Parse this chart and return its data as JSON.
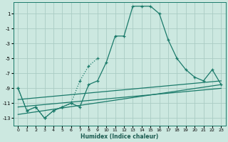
{
  "xlabel": "Humidex (Indice chaleur)",
  "background_color": "#cce8e0",
  "grid_color": "#aaccc4",
  "line_color": "#1a7a6a",
  "xlim": [
    -0.5,
    23.5
  ],
  "ylim": [
    -14,
    2.5
  ],
  "yticks": [
    1,
    -1,
    -3,
    -5,
    -7,
    -9,
    -11,
    -13
  ],
  "xticks": [
    0,
    1,
    2,
    3,
    4,
    5,
    6,
    7,
    8,
    9,
    10,
    11,
    12,
    13,
    14,
    15,
    16,
    17,
    18,
    19,
    20,
    21,
    22,
    23
  ],
  "series_main": {
    "x": [
      0,
      1,
      2,
      3,
      4,
      5,
      6,
      7,
      8,
      9,
      10,
      11,
      12,
      13,
      14,
      15,
      16,
      17,
      18,
      19,
      20,
      21,
      22,
      23
    ],
    "y": [
      -9,
      -12,
      -11.5,
      -13,
      -12,
      -11.5,
      -11,
      -11.5,
      -8.5,
      -8,
      -5.5,
      -2,
      -2,
      2,
      2,
      2,
      1,
      -2.5,
      -5,
      -6.5,
      -7.5,
      -8,
      -6.5,
      -8.5
    ]
  },
  "series_short": {
    "x": [
      0,
      1,
      2,
      3,
      4,
      5,
      6,
      7,
      8,
      9
    ],
    "y": [
      -9,
      -12,
      -11.5,
      -13,
      -12,
      -11.5,
      -11,
      -8,
      -6,
      -5
    ]
  },
  "line1": {
    "x": [
      0,
      23
    ],
    "y": [
      -12.5,
      -8.5
    ]
  },
  "line2": {
    "x": [
      0,
      23
    ],
    "y": [
      -11.5,
      -9.0
    ]
  },
  "line3": {
    "x": [
      0,
      23
    ],
    "y": [
      -10.5,
      -8.0
    ]
  }
}
